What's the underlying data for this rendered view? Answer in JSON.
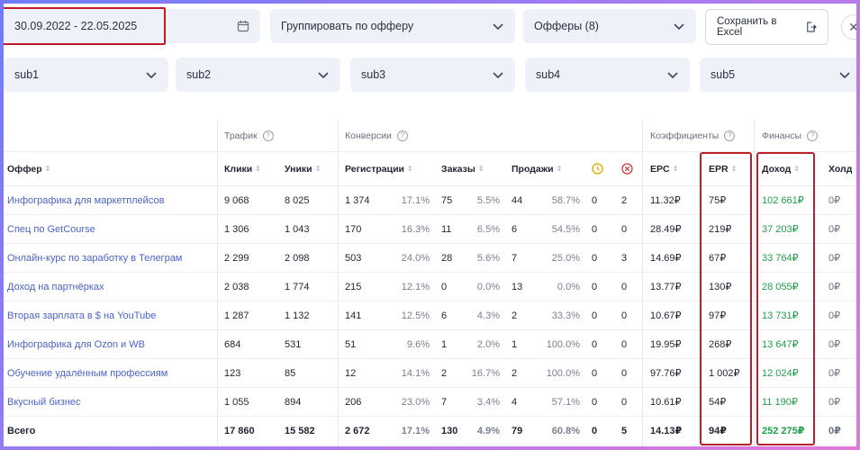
{
  "filters": {
    "date_range": "30.09.2022 - 22.05.2025",
    "group_by": "Группировать по офферу",
    "offers": "Офферы (8)",
    "export_label": "Сохранить в Excel",
    "subs": [
      "sub1",
      "sub2",
      "sub3",
      "sub4",
      "sub5"
    ]
  },
  "groups": {
    "traffic": "Трафик",
    "conversions": "Конверсии",
    "coefficients": "Коэффициенты",
    "finance": "Финансы"
  },
  "columns": {
    "offer": "Оффер",
    "clicks": "Клики",
    "uniques": "Уники",
    "registrations": "Регистрации",
    "orders": "Заказы",
    "sales": "Продажи",
    "epc": "EPC",
    "epr": "EPR",
    "income": "Доход",
    "hold": "Холд"
  },
  "rows": [
    {
      "offer": "Инфографика для маркетплейсов",
      "clicks": "9 068",
      "uniques": "8 025",
      "reg": "1 374",
      "reg_pct": "17.1%",
      "orders": "75",
      "orders_pct": "5.5%",
      "sales": "44",
      "sales_pct": "58.7%",
      "pending": "0",
      "rejected": "2",
      "epc": "11.32₽",
      "epr": "75₽",
      "income": "102 661₽",
      "hold": "0₽"
    },
    {
      "offer": "Спец по GetCourse",
      "clicks": "1 306",
      "uniques": "1 043",
      "reg": "170",
      "reg_pct": "16.3%",
      "orders": "11",
      "orders_pct": "6.5%",
      "sales": "6",
      "sales_pct": "54.5%",
      "pending": "0",
      "rejected": "0",
      "epc": "28.49₽",
      "epr": "219₽",
      "income": "37 203₽",
      "hold": "0₽"
    },
    {
      "offer": "Онлайн-курс по заработку в Телеграм",
      "clicks": "2 299",
      "uniques": "2 098",
      "reg": "503",
      "reg_pct": "24.0%",
      "orders": "28",
      "orders_pct": "5.6%",
      "sales": "7",
      "sales_pct": "25.0%",
      "pending": "0",
      "rejected": "3",
      "epc": "14.69₽",
      "epr": "67₽",
      "income": "33 764₽",
      "hold": "0₽"
    },
    {
      "offer": "Доход на партнёрках",
      "clicks": "2 038",
      "uniques": "1 774",
      "reg": "215",
      "reg_pct": "12.1%",
      "orders": "0",
      "orders_pct": "0.0%",
      "sales": "13",
      "sales_pct": "0.0%",
      "pending": "0",
      "rejected": "0",
      "epc": "13.77₽",
      "epr": "130₽",
      "income": "28 055₽",
      "hold": "0₽"
    },
    {
      "offer": "Вторая зарплата в $ на YouTube",
      "clicks": "1 287",
      "uniques": "1 132",
      "reg": "141",
      "reg_pct": "12.5%",
      "orders": "6",
      "orders_pct": "4.3%",
      "sales": "2",
      "sales_pct": "33.3%",
      "pending": "0",
      "rejected": "0",
      "epc": "10.67₽",
      "epr": "97₽",
      "income": "13 731₽",
      "hold": "0₽"
    },
    {
      "offer": "Инфографика для Ozon и WB",
      "clicks": "684",
      "uniques": "531",
      "reg": "51",
      "reg_pct": "9.6%",
      "orders": "1",
      "orders_pct": "2.0%",
      "sales": "1",
      "sales_pct": "100.0%",
      "pending": "0",
      "rejected": "0",
      "epc": "19.95₽",
      "epr": "268₽",
      "income": "13 647₽",
      "hold": "0₽"
    },
    {
      "offer": "Обучение удалённым профессиям",
      "clicks": "123",
      "uniques": "85",
      "reg": "12",
      "reg_pct": "14.1%",
      "orders": "2",
      "orders_pct": "16.7%",
      "sales": "2",
      "sales_pct": "100.0%",
      "pending": "0",
      "rejected": "0",
      "epc": "97.76₽",
      "epr": "1 002₽",
      "income": "12 024₽",
      "hold": "0₽"
    },
    {
      "offer": "Вкусный бизнес",
      "clicks": "1 055",
      "uniques": "894",
      "reg": "206",
      "reg_pct": "23.0%",
      "orders": "7",
      "orders_pct": "3.4%",
      "sales": "4",
      "sales_pct": "57.1%",
      "pending": "0",
      "rejected": "0",
      "epc": "10.61₽",
      "epr": "54₽",
      "income": "11 190₽",
      "hold": "0₽"
    }
  ],
  "total": {
    "offer": "Всего",
    "clicks": "17 860",
    "uniques": "15 582",
    "reg": "2 672",
    "reg_pct": "17.1%",
    "orders": "130",
    "orders_pct": "4.9%",
    "sales": "79",
    "sales_pct": "60.8%",
    "pending": "0",
    "rejected": "5",
    "epc": "14.13₽",
    "epr": "94₽",
    "income": "252 275₽",
    "hold": "0₽"
  },
  "colors": {
    "accent_link": "#4a63c9",
    "income_green": "#1d9f4a",
    "highlight_red": "#b8202c"
  }
}
